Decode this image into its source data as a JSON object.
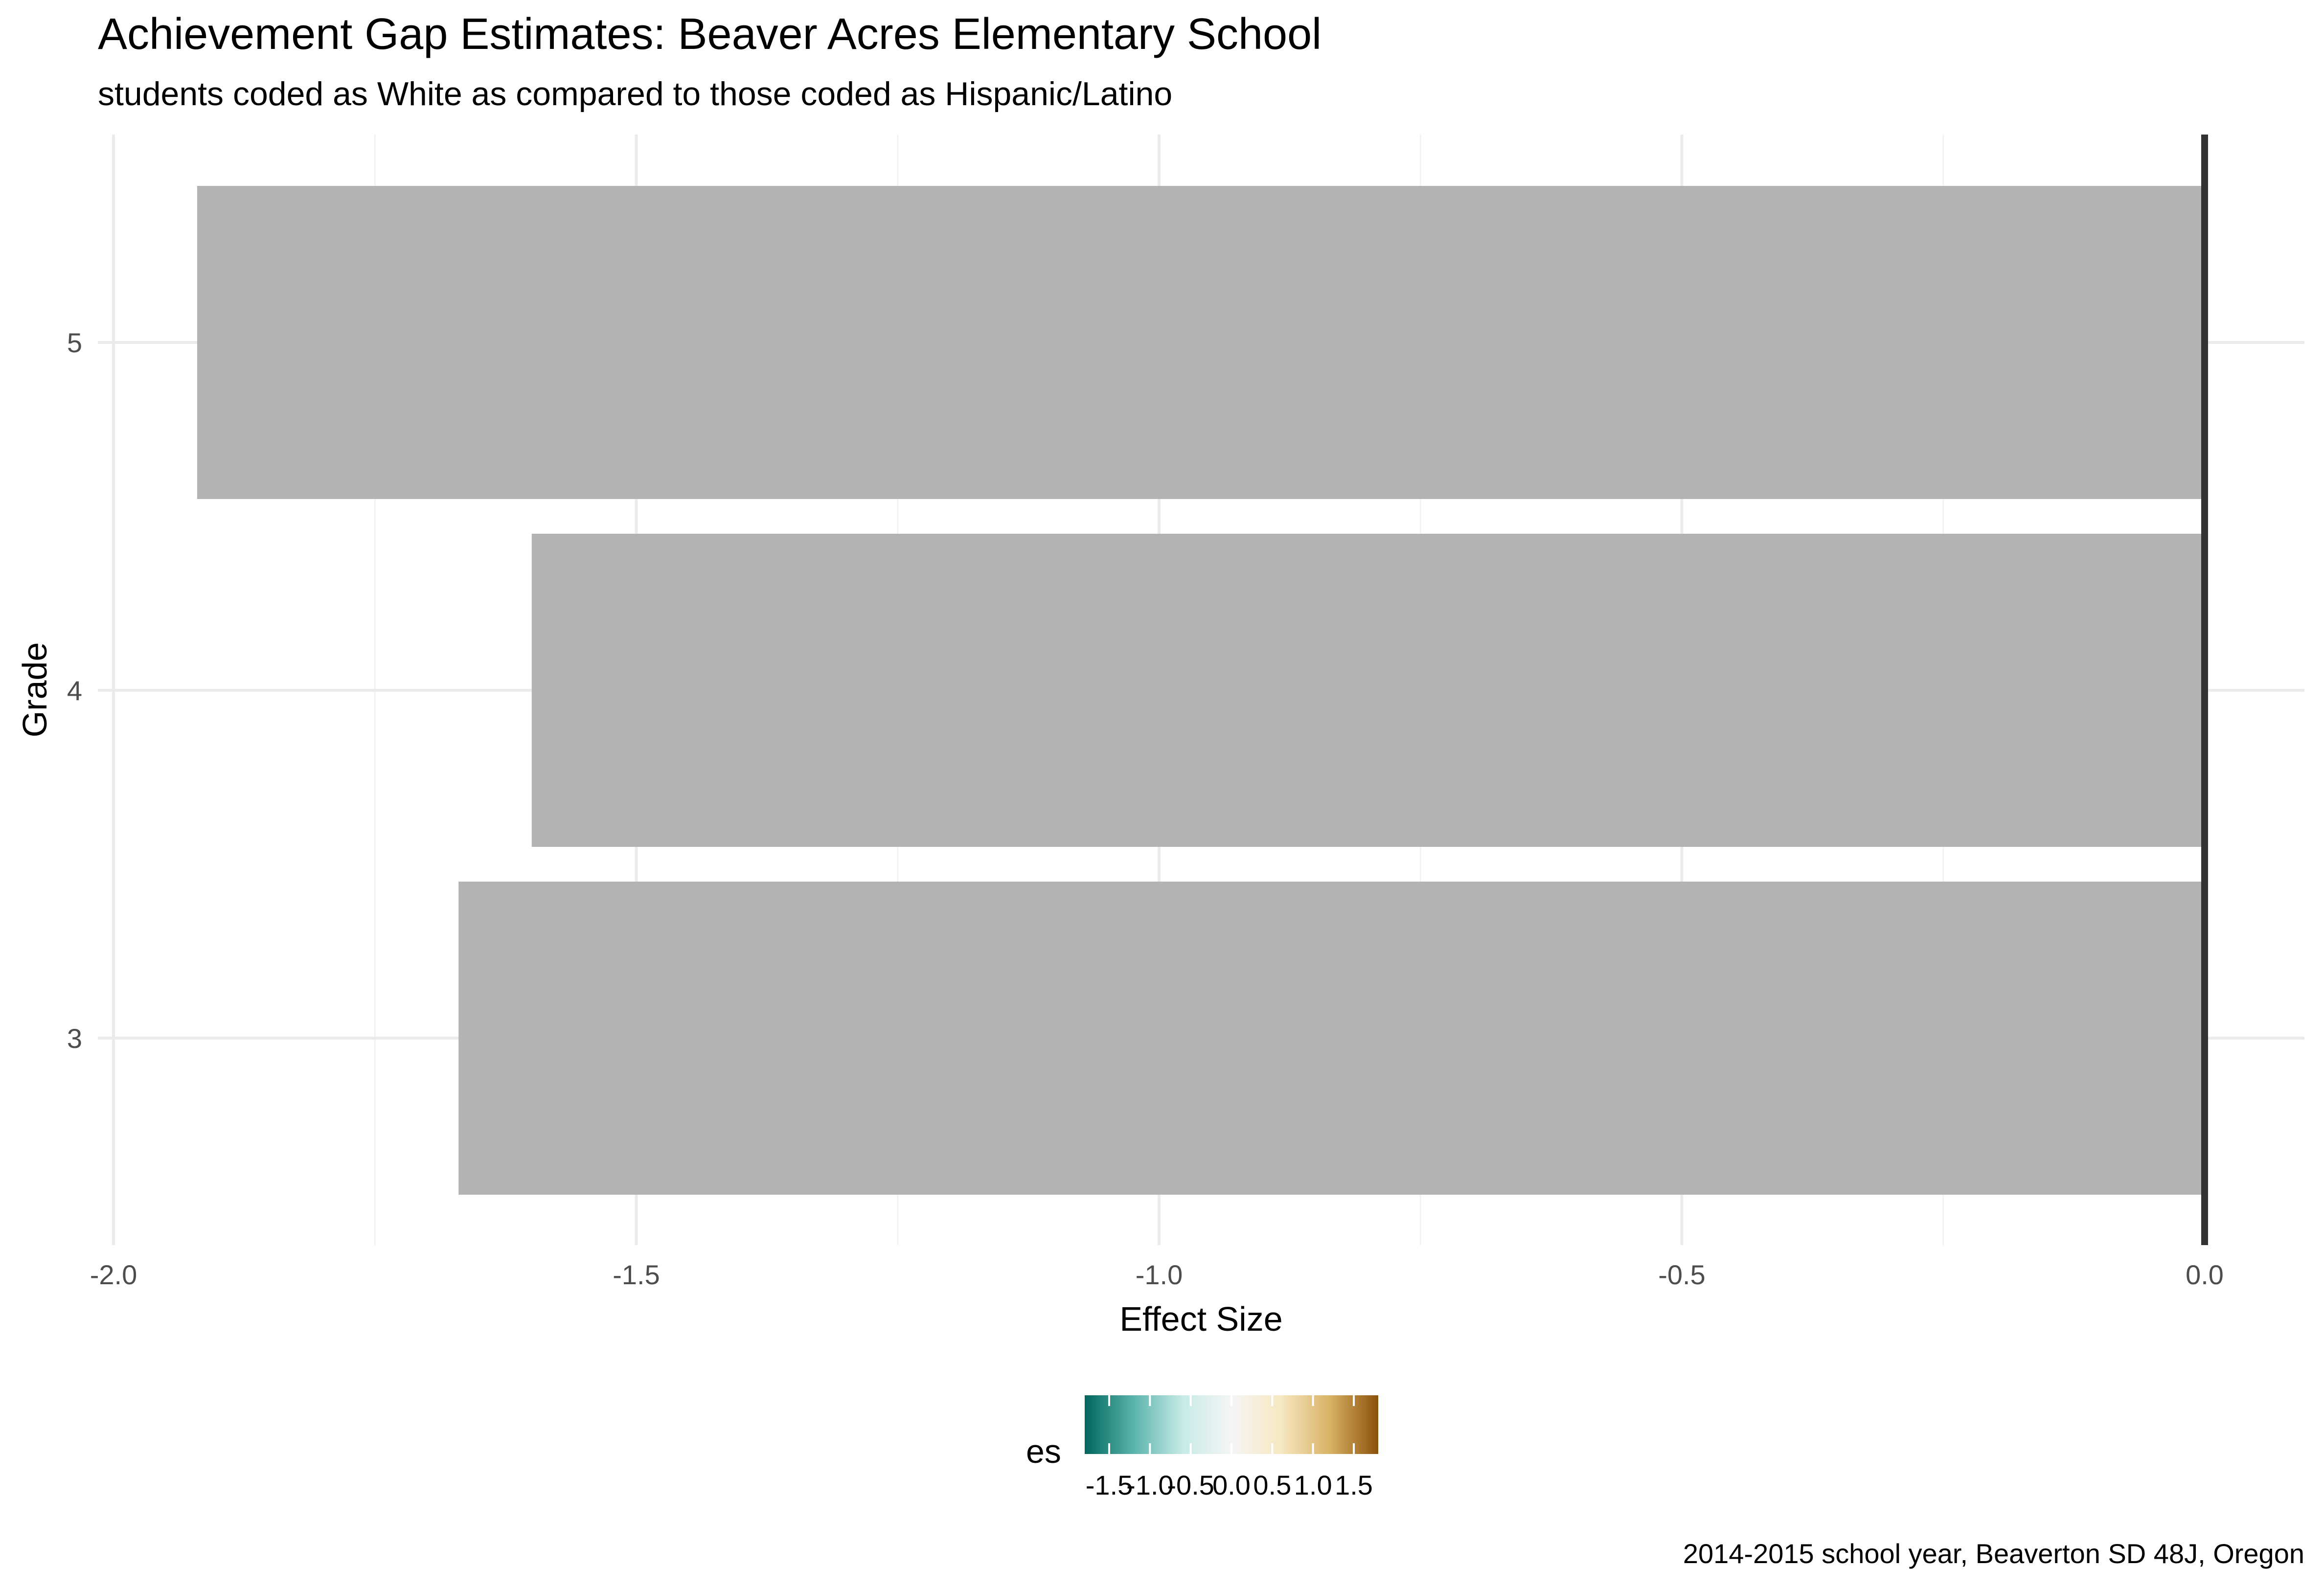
{
  "chart_data": {
    "type": "bar",
    "orientation": "horizontal",
    "title": "Achievement Gap Estimates: Beaver Acres Elementary School",
    "subtitle": "students coded as White as compared to those coded as Hispanic/Latino",
    "xlabel": "Effect Size",
    "ylabel": "Grade",
    "categories": [
      "3",
      "4",
      "5"
    ],
    "values": [
      -1.67,
      -1.6,
      -1.92
    ],
    "xlim": [
      -2.0,
      0.0
    ],
    "x_ticks": [
      "-2.0",
      "-1.5",
      "-1.0",
      "-0.5",
      "0.0"
    ],
    "grid": true,
    "bar_color": "#b3b3b3",
    "zero_line_color": "#333333",
    "legend": {
      "title": "es",
      "position": "bottom",
      "ticks": [
        "-1.5",
        "-1.0",
        "-0.5",
        "0.0",
        "0.5",
        "1.0",
        "1.5"
      ],
      "range": [
        -1.8,
        1.8
      ],
      "colors": [
        "#01665e",
        "#5ab4ac",
        "#c7eae5",
        "#f5f5f5",
        "#f6e8c3",
        "#d8b365",
        "#8c510a"
      ]
    },
    "caption": "2014-2015 school year, Beaverton SD 48J, Oregon"
  }
}
